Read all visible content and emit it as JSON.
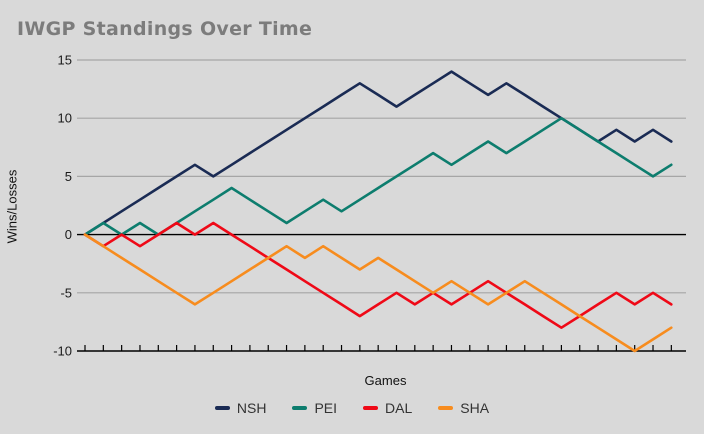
{
  "title": "IWGP Standings Over Time",
  "colors": {
    "background": "#d9d9d9",
    "grid": "#a6a6a6",
    "axis": "#000000",
    "title_text": "#7c7c7c",
    "tick_text": "#1a1a1a"
  },
  "chart_data": {
    "type": "line",
    "title": "IWGP Standings Over Time",
    "xlabel": "Games",
    "ylabel": "Wins/Losses",
    "x_description": "game index 0 to 32, one x tick per game, no x tick labels",
    "xlim": [
      0,
      32
    ],
    "ylim": [
      -10,
      15
    ],
    "y_ticks": [
      15,
      10,
      5,
      0,
      -5,
      -10
    ],
    "grid": true,
    "zero_line": true,
    "legend_position": "bottom",
    "series": [
      {
        "name": "NSH",
        "color": "#1a2b54",
        "values": [
          0,
          1,
          2,
          3,
          4,
          5,
          6,
          5,
          6,
          7,
          8,
          9,
          10,
          11,
          12,
          13,
          12,
          11,
          12,
          13,
          14,
          13,
          12,
          13,
          12,
          11,
          10,
          9,
          8,
          9,
          8,
          9,
          8
        ]
      },
      {
        "name": "PEI",
        "color": "#0d7d6e",
        "values": [
          0,
          1,
          0,
          1,
          0,
          1,
          2,
          3,
          4,
          3,
          2,
          1,
          2,
          3,
          2,
          3,
          4,
          5,
          6,
          7,
          6,
          7,
          8,
          7,
          8,
          9,
          10,
          9,
          8,
          7,
          6,
          5,
          6
        ]
      },
      {
        "name": "DAL",
        "color": "#ef0917",
        "values": [
          0,
          -1,
          0,
          -1,
          0,
          1,
          0,
          1,
          0,
          -1,
          -2,
          -3,
          -4,
          -5,
          -6,
          -7,
          -6,
          -5,
          -6,
          -5,
          -6,
          -5,
          -4,
          -5,
          -6,
          -7,
          -8,
          -7,
          -6,
          -5,
          -6,
          -5,
          -6
        ]
      },
      {
        "name": "SHA",
        "color": "#f78c1e",
        "values": [
          0,
          -1,
          -2,
          -3,
          -4,
          -5,
          -6,
          -5,
          -4,
          -3,
          -2,
          -1,
          -2,
          -1,
          -2,
          -3,
          -2,
          -3,
          -4,
          -5,
          -4,
          -5,
          -6,
          -5,
          -4,
          -5,
          -6,
          -7,
          -8,
          -9,
          -10,
          -9,
          -8
        ]
      }
    ]
  }
}
